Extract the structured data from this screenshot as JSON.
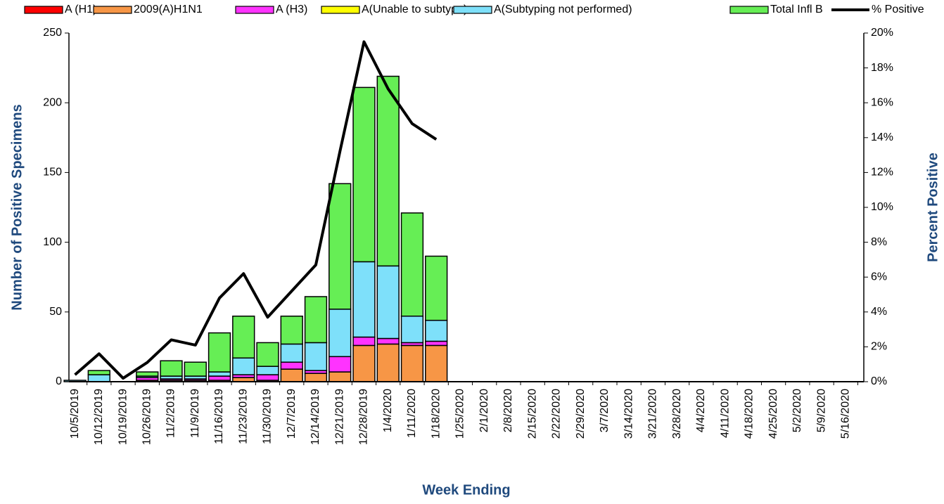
{
  "chart_data": {
    "type": "bar",
    "x_label": "Week Ending",
    "y_label": "Number of  Positive Specimens",
    "y2_label": "Percent Positive",
    "categories": [
      "10/5/2019",
      "10/12/2019",
      "10/19/2019",
      "10/26/2019",
      "11/2/2019",
      "11/9/2019",
      "11/16/2019",
      "11/23/2019",
      "11/30/2019",
      "12/7/2019",
      "12/14/2019",
      "12/21/2019",
      "12/28/2019",
      "1/4/2020",
      "1/11/2020",
      "1/18/2020",
      "1/25/2020",
      "2/1/2020",
      "2/8/2020",
      "2/15/2020",
      "2/22/2020",
      "2/29/2020",
      "3/7/2020",
      "3/14/2020",
      "3/21/2020",
      "3/28/2020",
      "4/4/2020",
      "4/11/2020",
      "4/18/2020",
      "4/25/2020",
      "5/2/2020",
      "5/9/2020",
      "5/16/2020"
    ],
    "stacked": true,
    "series": [
      {
        "name": "A (H1)",
        "color": "#ff0000",
        "values": [
          0,
          0,
          0,
          0,
          0,
          0,
          0,
          0,
          0,
          0,
          0,
          0,
          0,
          0,
          0,
          0,
          0,
          0,
          0,
          0,
          0,
          0,
          0,
          0,
          0,
          0,
          0,
          0,
          0,
          0,
          0,
          0,
          0
        ]
      },
      {
        "name": "2009(A)H1N1",
        "color": "#f79646",
        "values": [
          0,
          0,
          0,
          1,
          1,
          1,
          1,
          3,
          1,
          9,
          6,
          7,
          26,
          27,
          26,
          26,
          0,
          0,
          0,
          0,
          0,
          0,
          0,
          0,
          0,
          0,
          0,
          0,
          0,
          0,
          0,
          0,
          0
        ]
      },
      {
        "name": "A (H3)",
        "color": "#ff33ff",
        "values": [
          0,
          0,
          0,
          2,
          1,
          1,
          3,
          2,
          4,
          5,
          2,
          11,
          6,
          4,
          2,
          3,
          0,
          0,
          0,
          0,
          0,
          0,
          0,
          0,
          0,
          0,
          0,
          0,
          0,
          0,
          0,
          0,
          0
        ]
      },
      {
        "name": "A(Unable to subtype)",
        "color": "#ffff00",
        "values": [
          0,
          0,
          0,
          0,
          0,
          0,
          0,
          0,
          0,
          0,
          0,
          0,
          0,
          0,
          0,
          0,
          0,
          0,
          0,
          0,
          0,
          0,
          0,
          0,
          0,
          0,
          0,
          0,
          0,
          0,
          0,
          0,
          0
        ]
      },
      {
        "name": "A(Subtyping not performed)",
        "color": "#7ee0fa",
        "values": [
          1,
          5,
          0,
          1,
          2,
          2,
          3,
          12,
          6,
          13,
          20,
          34,
          54,
          52,
          19,
          15,
          0,
          0,
          0,
          0,
          0,
          0,
          0,
          0,
          0,
          0,
          0,
          0,
          0,
          0,
          0,
          0,
          0
        ]
      },
      {
        "name": "Total Infl B",
        "color": "#66ee55",
        "values": [
          0,
          3,
          0,
          3,
          11,
          10,
          28,
          30,
          17,
          20,
          33,
          90,
          125,
          136,
          74,
          46,
          0,
          0,
          0,
          0,
          0,
          0,
          0,
          0,
          0,
          0,
          0,
          0,
          0,
          0,
          0,
          0,
          0
        ]
      },
      {
        "name": "% Positive",
        "color": "#000000",
        "type": "line",
        "axis": "y2",
        "values": [
          0.4,
          1.6,
          0.2,
          1.1,
          2.4,
          2.1,
          4.8,
          6.2,
          3.7,
          5.2,
          6.7,
          13.2,
          19.5,
          16.8,
          14.8,
          13.9,
          null,
          null,
          null,
          null,
          null,
          null,
          null,
          null,
          null,
          null,
          null,
          null,
          null,
          null,
          null,
          null,
          null
        ]
      }
    ],
    "ylim": [
      0,
      250
    ],
    "yticks": [
      0,
      50,
      100,
      150,
      200,
      250
    ],
    "y2lim": [
      0,
      20
    ],
    "y2ticks": [
      {
        "value": 0,
        "label": "0%"
      },
      {
        "value": 2,
        "label": "2%"
      },
      {
        "value": 4,
        "label": "4%"
      },
      {
        "value": 6,
        "label": "6%"
      },
      {
        "value": 8,
        "label": "8%"
      },
      {
        "value": 10,
        "label": "10%"
      },
      {
        "value": 12,
        "label": "12%"
      },
      {
        "value": 14,
        "label": "14%"
      },
      {
        "value": 16,
        "label": "16%"
      },
      {
        "value": 18,
        "label": "18%"
      },
      {
        "value": 20,
        "label": "20%"
      }
    ]
  }
}
